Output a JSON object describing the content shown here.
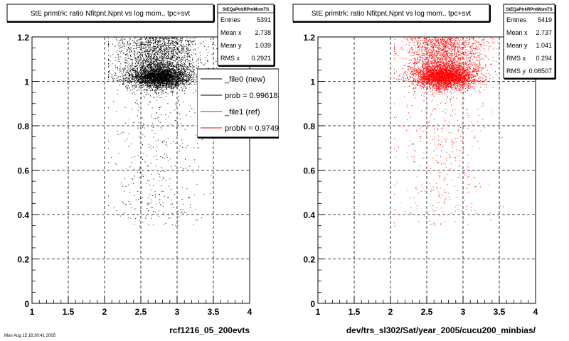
{
  "footer": "Mon Aug 15 16:30:41 2005",
  "chart_data": [
    {
      "type": "scatter",
      "title": "StE primtrk: ratio Nfitpnt,Npnt vs log mom., tpc+svt",
      "xlabel": "rcf1216_05_200evts",
      "ylabel": "",
      "xlim": [
        1,
        4
      ],
      "ylim": [
        0,
        1.2
      ],
      "x_ticks": [
        "1",
        "1.5",
        "2",
        "2.5",
        "3",
        "3.5",
        "4"
      ],
      "y_ticks": [
        "0",
        "0.2",
        "0.4",
        "0.6",
        "0.8",
        "1",
        "1.2"
      ],
      "grid": true,
      "color": "#000000",
      "distribution": {
        "x_range": [
          2.05,
          3.55
        ],
        "x_center": 2.75,
        "core_y": 1.02,
        "n_points": 5391
      },
      "stats": {
        "name": "StEQaPtrkRPntMomTS",
        "rows": [
          {
            "label": "Entries",
            "value": "5391"
          },
          {
            "label": "Mean x",
            "value": "2.738"
          },
          {
            "label": "Mean y",
            "value": "1.039"
          },
          {
            "label": "RMS x",
            "value": "0.2921"
          }
        ]
      },
      "legend": {
        "placement": "right",
        "entries": [
          {
            "label": "_file0 (new)",
            "color": "#000000"
          },
          {
            "label": "prob = 0.996183",
            "color": "#000000"
          },
          {
            "label": "_file1 (ref)",
            "color": "#ff0000"
          },
          {
            "label": "probN = 0.974995",
            "color": "#ff0000"
          }
        ]
      }
    },
    {
      "type": "scatter",
      "title": "StE primtrk: ratio Nfitpnt,Npnt vs log mom., tpc+svt",
      "xlabel": "dev/trs_sl302/Sat/year_2005/cucu200_minbias/",
      "ylabel": "",
      "xlim": [
        1,
        4
      ],
      "ylim": [
        0,
        1.2
      ],
      "x_ticks": [
        "1",
        "1.5",
        "2",
        "2.5",
        "3",
        "3.5",
        "4"
      ],
      "y_ticks": [
        "0",
        "0.2",
        "0.4",
        "0.6",
        "0.8",
        "1",
        "1.2"
      ],
      "grid": true,
      "color": "#ff0000",
      "distribution": {
        "x_range": [
          2.05,
          3.55
        ],
        "x_center": 2.74,
        "core_y": 1.02,
        "n_points": 5419
      },
      "stats": {
        "name": "StEQaPtrkRPntMomTS",
        "rows": [
          {
            "label": "Entries",
            "value": "5419"
          },
          {
            "label": "Mean x",
            "value": "2.737"
          },
          {
            "label": "Mean y",
            "value": "1.041"
          },
          {
            "label": "RMS x",
            "value": "0.294"
          },
          {
            "label": "RMS y",
            "value": "0.08507"
          }
        ]
      }
    }
  ]
}
